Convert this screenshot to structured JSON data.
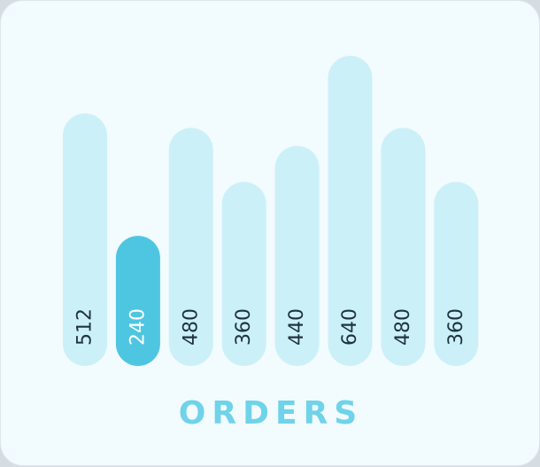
{
  "chart_data": {
    "type": "bar",
    "title": "ORDERS",
    "values": [
      512,
      240,
      480,
      360,
      440,
      640,
      480,
      360
    ],
    "highlight_index": 1,
    "ylim": [
      0,
      640
    ],
    "grid": false,
    "legend": "none",
    "data_labels": [
      "512",
      "240",
      "480",
      "360",
      "440",
      "640",
      "480",
      "360"
    ]
  },
  "colors": {
    "card_background": "#f2fbfe",
    "bar": "#ccf0f8",
    "bar_highlight": "#4ec6e1",
    "label": "#1f3340",
    "label_highlight": "#ffffff",
    "title": "#6fd3e9"
  }
}
